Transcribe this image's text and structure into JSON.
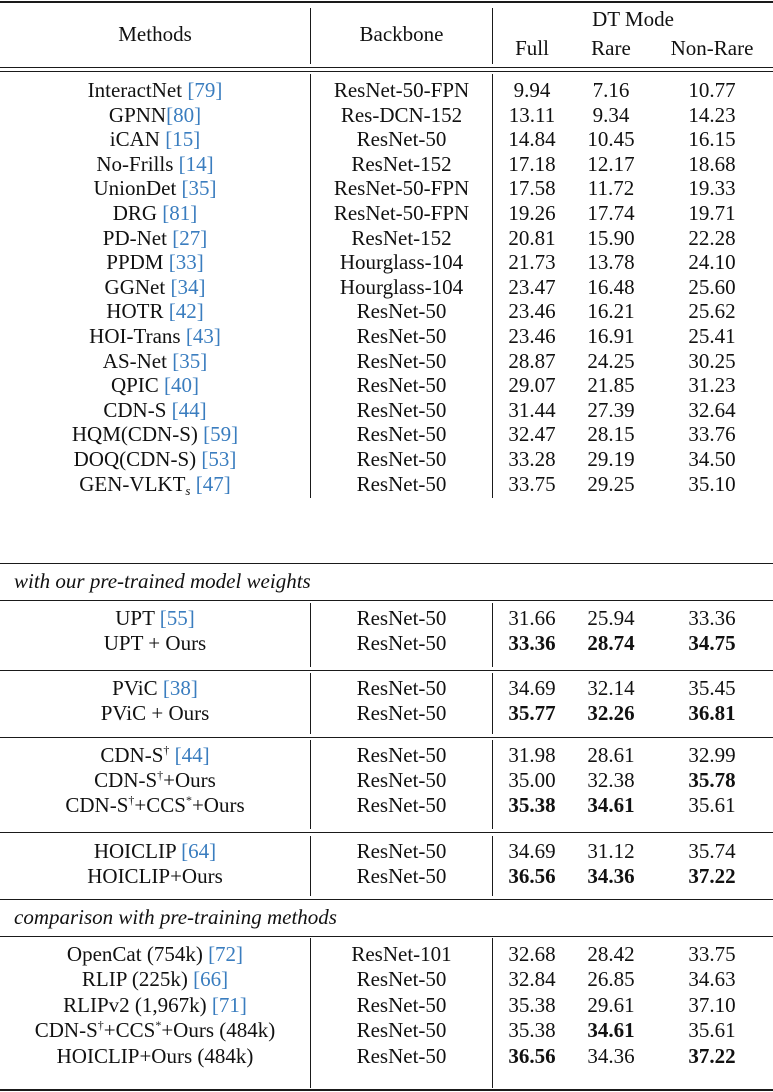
{
  "table": {
    "header": {
      "methods": "Methods",
      "backbone": "Backbone",
      "group": "DT Mode",
      "full": "Full",
      "rare": "Rare",
      "nonrare": "Non-Rare"
    },
    "sections": {
      "pretrained": "with our pre-trained model weights",
      "comparison": "comparison with pre-training methods"
    },
    "rows": [
      {
        "name": "InteractNet ",
        "cite": "[79]",
        "backbone": "ResNet-50-FPN",
        "full": "9.94",
        "rare": "7.16",
        "nonrare": "10.77"
      },
      {
        "name": "GPNN",
        "cite": "[80]",
        "backbone": "Res-DCN-152",
        "full": "13.11",
        "rare": "9.34",
        "nonrare": "14.23"
      },
      {
        "name": "iCAN ",
        "cite": "[15]",
        "backbone": "ResNet-50",
        "full": "14.84",
        "rare": "10.45",
        "nonrare": "16.15"
      },
      {
        "name": "No-Frills ",
        "cite": "[14]",
        "backbone": "ResNet-152",
        "full": "17.18",
        "rare": "12.17",
        "nonrare": "18.68"
      },
      {
        "name": "UnionDet ",
        "cite": "[35]",
        "backbone": "ResNet-50-FPN",
        "full": "17.58",
        "rare": "11.72",
        "nonrare": "19.33"
      },
      {
        "name": "DRG ",
        "cite": "[81]",
        "backbone": "ResNet-50-FPN",
        "full": "19.26",
        "rare": "17.74",
        "nonrare": "19.71"
      },
      {
        "name": "PD-Net ",
        "cite": "[27]",
        "backbone": "ResNet-152",
        "full": "20.81",
        "rare": "15.90",
        "nonrare": "22.28"
      },
      {
        "name": "PPDM ",
        "cite": "[33]",
        "backbone": "Hourglass-104",
        "full": "21.73",
        "rare": "13.78",
        "nonrare": "24.10"
      },
      {
        "name": "GGNet ",
        "cite": "[34]",
        "backbone": "Hourglass-104",
        "full": "23.47",
        "rare": "16.48",
        "nonrare": "25.60"
      },
      {
        "name": "HOTR ",
        "cite": "[42]",
        "backbone": "ResNet-50",
        "full": "23.46",
        "rare": "16.21",
        "nonrare": "25.62"
      },
      {
        "name": "HOI-Trans ",
        "cite": "[43]",
        "backbone": "ResNet-50",
        "full": "23.46",
        "rare": "16.91",
        "nonrare": "25.41"
      },
      {
        "name": "AS-Net ",
        "cite": "[35]",
        "backbone": "ResNet-50",
        "full": "28.87",
        "rare": "24.25",
        "nonrare": "30.25"
      },
      {
        "name": "QPIC ",
        "cite": "[40]",
        "backbone": "ResNet-50",
        "full": "29.07",
        "rare": "21.85",
        "nonrare": "31.23"
      },
      {
        "name": "CDN-S ",
        "cite": "[44]",
        "backbone": "ResNet-50",
        "full": "31.44",
        "rare": "27.39",
        "nonrare": "32.64"
      },
      {
        "name": "HQM(CDN-S) ",
        "cite": "[59]",
        "backbone": "ResNet-50",
        "full": "32.47",
        "rare": "28.15",
        "nonrare": "33.76"
      },
      {
        "name": "DOQ(CDN-S) ",
        "cite": "[53]",
        "backbone": "ResNet-50",
        "full": "33.28",
        "rare": "29.19",
        "nonrare": "34.50"
      },
      {
        "name": "GEN-VLKT",
        "sub": "s",
        "cite": "[47]",
        "backbone": "ResNet-50",
        "full": "33.75",
        "rare": "29.25",
        "nonrare": "35.10"
      }
    ],
    "pretrained_groups": [
      [
        {
          "name": "UPT ",
          "cite": "[55]",
          "backbone": "ResNet-50",
          "full": "31.66",
          "rare": "25.94",
          "nonrare": "33.36"
        },
        {
          "name": "UPT + Ours",
          "backbone": "ResNet-50",
          "full": "33.36",
          "rare": "28.74",
          "nonrare": "34.75",
          "bold": [
            "full",
            "rare",
            "nonrare"
          ]
        }
      ],
      [
        {
          "name": "PViC ",
          "cite": "[38]",
          "backbone": "ResNet-50",
          "full": "34.69",
          "rare": "32.14",
          "nonrare": "35.45"
        },
        {
          "name": "PViC + Ours",
          "backbone": "ResNet-50",
          "full": "35.77",
          "rare": "32.26",
          "nonrare": "36.81",
          "bold": [
            "full",
            "rare",
            "nonrare"
          ]
        }
      ],
      [
        {
          "name": "CDN-S",
          "sup": "†",
          "name2": " ",
          "cite": "[44]",
          "backbone": "ResNet-50",
          "full": "31.98",
          "rare": "28.61",
          "nonrare": "32.99"
        },
        {
          "name": "CDN-S",
          "sup": "†",
          "name2": "+Ours",
          "backbone": "ResNet-50",
          "full": "35.00",
          "rare": "32.38",
          "nonrare": "35.78",
          "bold": [
            "nonrare"
          ]
        },
        {
          "name": "CDN-S",
          "sup": "†",
          "name2": "+CCS",
          "sup2": "*",
          "name3": "+Ours",
          "backbone": "ResNet-50",
          "full": "35.38",
          "rare": "34.61",
          "nonrare": "35.61",
          "bold": [
            "full",
            "rare"
          ]
        }
      ],
      [
        {
          "name": "HOICLIP ",
          "cite": "[64]",
          "backbone": "ResNet-50",
          "full": "34.69",
          "rare": "31.12",
          "nonrare": "35.74"
        },
        {
          "name": "HOICLIP+Ours",
          "backbone": "ResNet-50",
          "full": "36.56",
          "rare": "34.36",
          "nonrare": "37.22",
          "bold": [
            "full",
            "rare",
            "nonrare"
          ]
        }
      ]
    ],
    "comparison_rows": [
      {
        "name": "OpenCat (754k) ",
        "cite": "[72]",
        "backbone": "ResNet-101",
        "full": "32.68",
        "rare": "28.42",
        "nonrare": "33.75"
      },
      {
        "name": "RLIP (225k) ",
        "cite": "[66]",
        "backbone": "ResNet-50",
        "full": "32.84",
        "rare": "26.85",
        "nonrare": "34.63"
      },
      {
        "name": "RLIPv2 (1,967k) ",
        "cite": "[71]",
        "backbone": "ResNet-50",
        "full": "35.38",
        "rare": "29.61",
        "nonrare": "37.10"
      },
      {
        "name": "CDN-S",
        "sup": "†",
        "name2": "+CCS",
        "sup2": "*",
        "name3": "+Ours (484k)",
        "backbone": "ResNet-50",
        "full": "35.38",
        "rare": "34.61",
        "nonrare": "35.61",
        "bold": [
          "rare"
        ]
      },
      {
        "name": "HOICLIP+Ours (484k)",
        "backbone": "ResNet-50",
        "full": "36.56",
        "rare": "34.36",
        "nonrare": "37.22",
        "bold": [
          "full",
          "nonrare"
        ]
      }
    ],
    "colors": {
      "citation": "#3a7dbf",
      "text": "#111111",
      "rule": "#1a1a1a"
    }
  }
}
